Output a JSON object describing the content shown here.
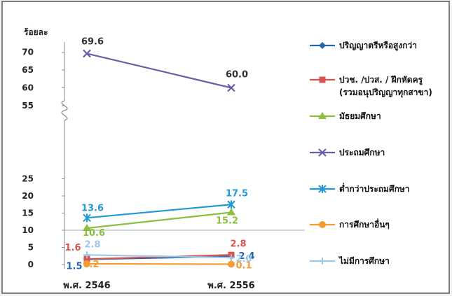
{
  "chart_data": {
    "type": "line",
    "ylabel": "ร้อยละ",
    "categories": [
      "พ.ศ. 2546",
      "พ.ศ. 2556"
    ],
    "y_ticks": [
      "0",
      "5",
      "10",
      "15",
      "20",
      "25",
      "55",
      "60",
      "65",
      "70"
    ],
    "y_axis_break": "between 25 and 55",
    "grid": false,
    "legend_position": "right",
    "series": [
      {
        "name": "ปริญญาตรีหรือสูงกว่า",
        "values": [
          1.5,
          2.4
        ],
        "labels": [
          "1.5",
          "2.4"
        ],
        "color": "#2266b0",
        "marker": "diamond"
      },
      {
        "name": "ปวช. /ปวส. / ฝึกหัดครู",
        "name_line2": "(รวมอนุปริญญาทุกสาขา)",
        "values": [
          1.6,
          2.8
        ],
        "labels": [
          "1.6",
          "2.8"
        ],
        "color": "#d9534f",
        "marker": "square"
      },
      {
        "name": "มัธยมศึกษา",
        "values": [
          10.6,
          15.2
        ],
        "labels": [
          "10.6",
          "15.2"
        ],
        "color": "#8bbf3f",
        "marker": "triangle"
      },
      {
        "name": "ประถมศึกษา",
        "values": [
          69.6,
          60.0
        ],
        "labels": [
          "69.6",
          "60.0"
        ],
        "color": "#6b5fa8",
        "marker": "x"
      },
      {
        "name": "ต่ำกว่าประถมศึกษา",
        "values": [
          13.6,
          17.5
        ],
        "labels": [
          "13.6",
          "17.5"
        ],
        "color": "#1f9ad6",
        "marker": "asterisk"
      },
      {
        "name": "การศึกษาอื่นๆ",
        "values": [
          0.2,
          0.1
        ],
        "labels": [
          "0.2",
          "0.1"
        ],
        "color": "#f39c33",
        "marker": "circle"
      },
      {
        "name": "ไม่มีการศึกษา",
        "values": [
          2.8,
          2.0
        ],
        "labels": [
          "2.8",
          "2.0"
        ],
        "color": "#9cc8ea",
        "marker": "plus"
      }
    ]
  }
}
